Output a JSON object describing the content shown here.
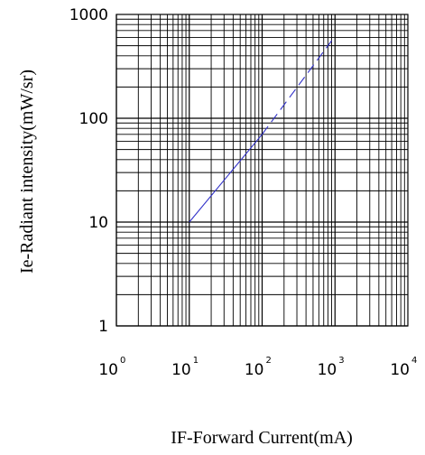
{
  "chart_data": {
    "type": "line",
    "xlabel": "IF-Forward Current(mA)",
    "ylabel": "Ie-Radiant intensity(mW/sr)",
    "x_scale": "log",
    "y_scale": "log",
    "xlim": [
      1,
      10000
    ],
    "ylim": [
      1,
      1000
    ],
    "grid": true,
    "x_ticks": [
      {
        "base": "10",
        "exp": "0"
      },
      {
        "base": "10",
        "exp": "1"
      },
      {
        "base": "10",
        "exp": "2"
      },
      {
        "base": "10",
        "exp": "3"
      },
      {
        "base": "10",
        "exp": "4"
      }
    ],
    "y_ticks": [
      "1",
      "10",
      "100",
      "1000"
    ],
    "series": [
      {
        "style": "solid",
        "color": "#3030c8",
        "points": [
          {
            "x": 10,
            "y": 10
          },
          {
            "x": 100,
            "y": 70
          }
        ]
      },
      {
        "style": "dashed",
        "color": "#3030c8",
        "points": [
          {
            "x": 100,
            "y": 70
          },
          {
            "x": 900,
            "y": 560
          }
        ]
      }
    ]
  }
}
